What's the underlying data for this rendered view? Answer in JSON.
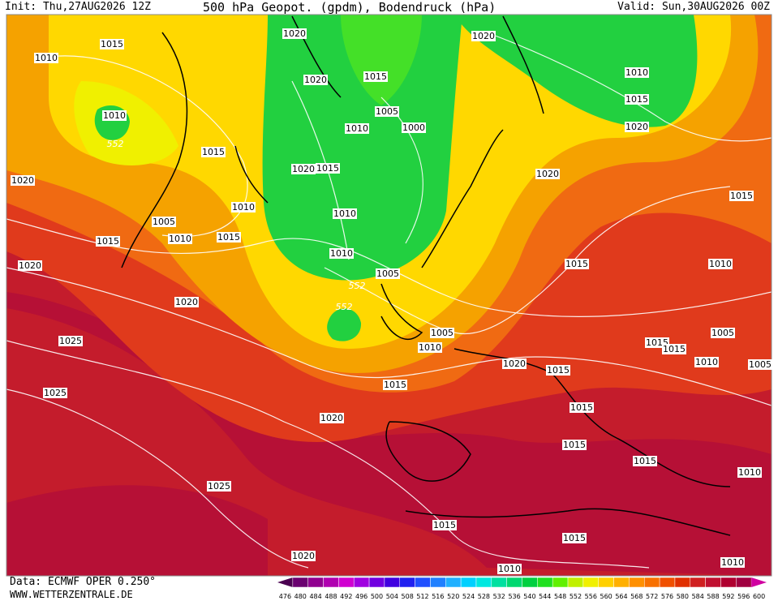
{
  "header": {
    "init": "Init: Thu,27AUG2026 12Z",
    "title": "500 hPa Geopot. (gpdm), Bodendruck (hPa)",
    "valid": "Valid: Sun,30AUG2026 00Z"
  },
  "map": {
    "isobar_labels": [
      1015,
      1010,
      1020,
      1020,
      1020,
      1015,
      1010,
      1010,
      552,
      1005,
      1010,
      1000,
      1015,
      1020,
      1015,
      1020,
      1015,
      1020,
      1020,
      1010,
      1010,
      1015,
      1005,
      1015,
      1010,
      1015,
      1010,
      1015,
      1010,
      1020,
      1005,
      552,
      1020,
      552,
      1005,
      1005,
      1025,
      1010,
      1015,
      1015,
      1020,
      1015,
      1010,
      1005,
      1015,
      1025,
      1015,
      1020,
      1015,
      1015,
      1010,
      1025,
      1015,
      1015,
      1020,
      1010,
      1010
    ]
  },
  "scale": {
    "values": [
      476,
      480,
      484,
      488,
      492,
      496,
      500,
      504,
      508,
      512,
      516,
      520,
      524,
      528,
      532,
      536,
      540,
      544,
      548,
      552,
      556,
      560,
      564,
      568,
      572,
      576,
      580,
      584,
      588,
      592,
      596,
      600
    ],
    "colors": [
      "#4a0050",
      "#6a0070",
      "#90008f",
      "#b000b0",
      "#d000d0",
      "#a000e0",
      "#7000e0",
      "#4000e0",
      "#2020f0",
      "#2050ff",
      "#2080ff",
      "#20b0ff",
      "#00d0ff",
      "#00e8e0",
      "#00e0a0",
      "#00d870",
      "#00d040",
      "#20e020",
      "#60f000",
      "#c0f000",
      "#f0f000",
      "#ffd000",
      "#ffb000",
      "#ff9000",
      "#f87000",
      "#f05000",
      "#e03000",
      "#d02020",
      "#c01030",
      "#b00030",
      "#a00040",
      "#d000a0"
    ]
  },
  "footer": {
    "source": "Data: ECMWF OPER 0.250°",
    "site": "WWW.WETTERZENTRALE.DE"
  }
}
